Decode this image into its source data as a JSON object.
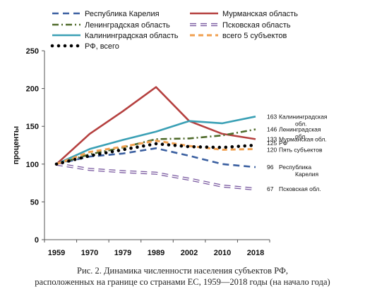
{
  "chart_data": {
    "type": "line",
    "x": [
      "1959",
      "1970",
      "1979",
      "1989",
      "2002",
      "2010",
      "2018"
    ],
    "ylabel": "проценты",
    "ylim": [
      0,
      250
    ],
    "yticks": [
      0,
      50,
      100,
      150,
      200,
      250
    ],
    "grid": false,
    "legend_position": "top",
    "series": [
      {
        "name": "Республика Карелия",
        "color": "#3a5fa0",
        "style": "dashed",
        "values": [
          100,
          110,
          114,
          121,
          111,
          100,
          96
        ],
        "end_label": {
          "value": "96",
          "text": "Республика Карелия"
        }
      },
      {
        "name": "Мурманская область",
        "color": "#b5403f",
        "style": "solid",
        "values": [
          100,
          140,
          170,
          202,
          157,
          140,
          133
        ],
        "end_label": {
          "value": "133",
          "text": "Мурманская обл."
        }
      },
      {
        "name": "Ленинградская область",
        "color": "#4f6a2a",
        "style": "dashdot",
        "values": [
          100,
          113,
          122,
          133,
          134,
          138,
          146
        ],
        "end_label": {
          "value": "146",
          "text": "Ленинградская обл."
        }
      },
      {
        "name": "Псковская область",
        "color": "#7a5aa0",
        "style": "hollow-dash",
        "values": [
          100,
          93,
          90,
          88,
          80,
          71,
          67
        ],
        "end_label": {
          "value": "67",
          "text": "Псковская обл."
        }
      },
      {
        "name": "Калининградская область",
        "color": "#3aa0b5",
        "style": "solid",
        "values": [
          100,
          120,
          132,
          143,
          157,
          154,
          163
        ],
        "end_label": {
          "value": "163",
          "text": "Калининградская обл."
        }
      },
      {
        "name": "всего 5 субъектов",
        "color": "#f0a050",
        "style": "dashed-thick",
        "values": [
          100,
          116,
          123,
          131,
          124,
          119,
          120
        ],
        "end_label": {
          "value": "120",
          "text": "Пять субъектов"
        }
      },
      {
        "name": "РФ, всего",
        "color": "#000000",
        "style": "dotted",
        "values": [
          100,
          111,
          119,
          127,
          123,
          122,
          125
        ],
        "end_label": {
          "value": "125",
          "text": "РФ"
        }
      }
    ]
  },
  "caption": {
    "line1": "Рис. 2. Динамика численности населения субъектов РФ,",
    "line2": "расположенных на границе со странами ЕС, 1959—2018 годы (на начало года)"
  }
}
